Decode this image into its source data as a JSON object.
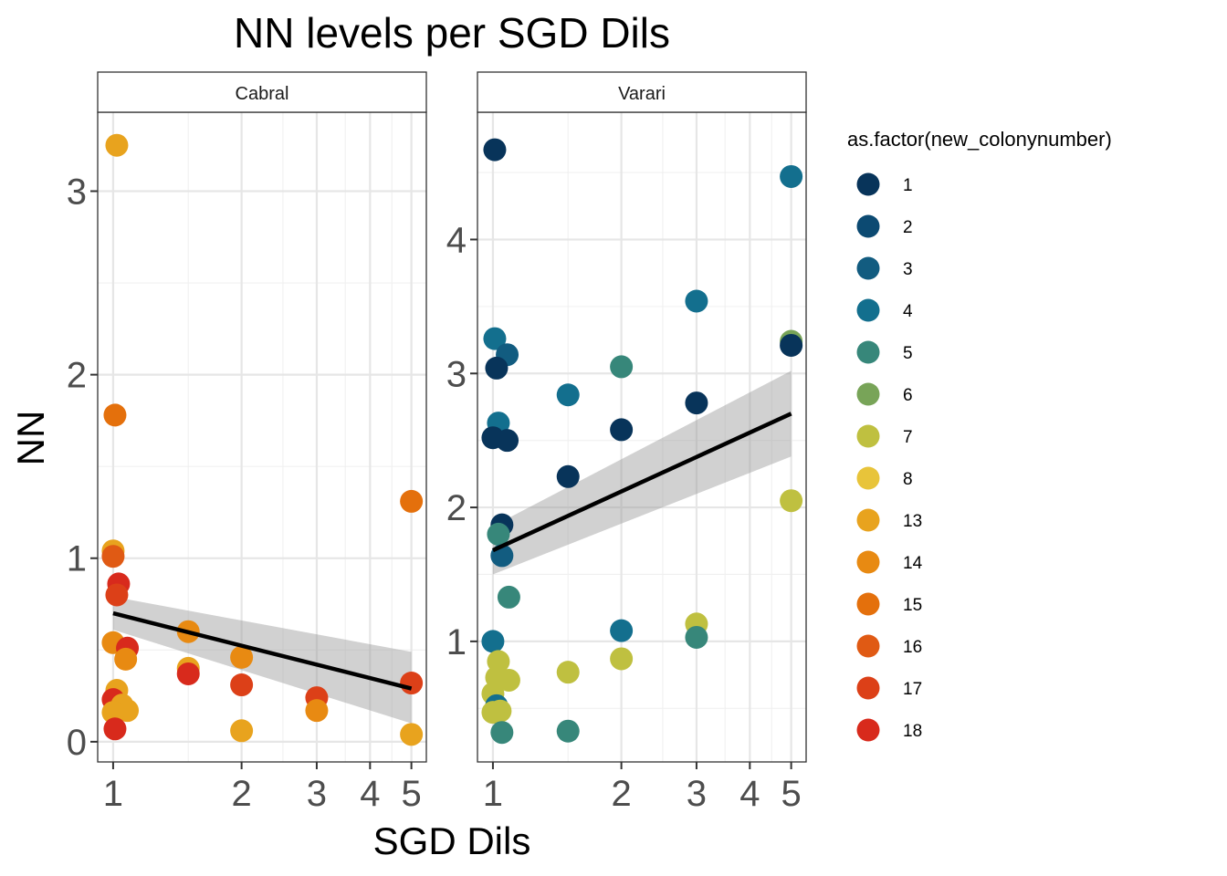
{
  "chart_data": {
    "type": "scatter",
    "title": "NN levels per SGD Dils",
    "xlabel": "SGD Dils",
    "ylabel": "NN",
    "x_scale": "log",
    "x_ticks": [
      1,
      2,
      3,
      4,
      5
    ],
    "legend": {
      "title": "as.factor(new_colonynumber)",
      "position": "right",
      "entries": [
        {
          "label": "1",
          "color": "#08345a"
        },
        {
          "label": "2",
          "color": "#0c4a72"
        },
        {
          "label": "3",
          "color": "#125c80"
        },
        {
          "label": "4",
          "color": "#136f8e"
        },
        {
          "label": "5",
          "color": "#37877a"
        },
        {
          "label": "6",
          "color": "#78a458"
        },
        {
          "label": "7",
          "color": "#bfc040"
        },
        {
          "label": "8",
          "color": "#e8c43a"
        },
        {
          "label": "13",
          "color": "#e8a31e"
        },
        {
          "label": "14",
          "color": "#e88a12"
        },
        {
          "label": "15",
          "color": "#e4700c"
        },
        {
          "label": "16",
          "color": "#e05a14"
        },
        {
          "label": "17",
          "color": "#dc4018"
        },
        {
          "label": "18",
          "color": "#d82a1c"
        }
      ]
    },
    "panels": [
      {
        "strip": "Cabral",
        "ylim": [
          -0.11,
          3.43
        ],
        "y_ticks": [
          0,
          1,
          2,
          3
        ],
        "trend": {
          "x": [
            1,
            5
          ],
          "y": [
            0.7,
            0.29
          ],
          "band_upper": [
            0.79,
            0.49
          ],
          "band_lower": [
            0.61,
            0.1
          ]
        },
        "points": [
          {
            "x": 1.02,
            "y": 3.25,
            "group": "13"
          },
          {
            "x": 1.01,
            "y": 1.78,
            "group": "15"
          },
          {
            "x": 1.0,
            "y": 1.04,
            "group": "13"
          },
          {
            "x": 1.0,
            "y": 1.01,
            "group": "16"
          },
          {
            "x": 1.03,
            "y": 0.86,
            "group": "18"
          },
          {
            "x": 1.02,
            "y": 0.8,
            "group": "17"
          },
          {
            "x": 1.0,
            "y": 0.54,
            "group": "14"
          },
          {
            "x": 1.08,
            "y": 0.51,
            "group": "18"
          },
          {
            "x": 1.07,
            "y": 0.45,
            "group": "14"
          },
          {
            "x": 1.02,
            "y": 0.28,
            "group": "13"
          },
          {
            "x": 1.0,
            "y": 0.23,
            "group": "18"
          },
          {
            "x": 1.05,
            "y": 0.2,
            "group": "13"
          },
          {
            "x": 1.08,
            "y": 0.17,
            "group": "13"
          },
          {
            "x": 1.0,
            "y": 0.16,
            "group": "13"
          },
          {
            "x": 1.01,
            "y": 0.07,
            "group": "18"
          },
          {
            "x": 1.5,
            "y": 0.6,
            "group": "14"
          },
          {
            "x": 1.5,
            "y": 0.4,
            "group": "13"
          },
          {
            "x": 1.5,
            "y": 0.37,
            "group": "18"
          },
          {
            "x": 2.0,
            "y": 0.46,
            "group": "14"
          },
          {
            "x": 2.0,
            "y": 0.31,
            "group": "17"
          },
          {
            "x": 2.0,
            "y": 0.06,
            "group": "13"
          },
          {
            "x": 3.0,
            "y": 0.24,
            "group": "17"
          },
          {
            "x": 3.0,
            "y": 0.17,
            "group": "14"
          },
          {
            "x": 5.0,
            "y": 1.31,
            "group": "15"
          },
          {
            "x": 5.0,
            "y": 0.32,
            "group": "17"
          },
          {
            "x": 5.0,
            "y": 0.04,
            "group": "13"
          }
        ]
      },
      {
        "strip": "Varari",
        "ylim": [
          0.1,
          4.95
        ],
        "y_ticks": [
          1,
          2,
          3,
          4
        ],
        "trend": {
          "x": [
            1,
            5
          ],
          "y": [
            1.68,
            2.7
          ],
          "band_upper": [
            1.86,
            3.02
          ],
          "band_lower": [
            1.5,
            2.38
          ]
        },
        "points": [
          {
            "x": 1.01,
            "y": 4.67,
            "group": "1"
          },
          {
            "x": 1.01,
            "y": 3.26,
            "group": "4"
          },
          {
            "x": 1.08,
            "y": 3.14,
            "group": "3"
          },
          {
            "x": 1.02,
            "y": 3.04,
            "group": "1"
          },
          {
            "x": 1.03,
            "y": 2.63,
            "group": "4"
          },
          {
            "x": 1.0,
            "y": 2.52,
            "group": "1"
          },
          {
            "x": 1.08,
            "y": 2.5,
            "group": "1"
          },
          {
            "x": 1.05,
            "y": 1.87,
            "group": "1"
          },
          {
            "x": 1.03,
            "y": 1.8,
            "group": "5"
          },
          {
            "x": 1.05,
            "y": 1.64,
            "group": "3"
          },
          {
            "x": 1.09,
            "y": 1.33,
            "group": "5"
          },
          {
            "x": 1.0,
            "y": 1.0,
            "group": "4"
          },
          {
            "x": 1.03,
            "y": 0.85,
            "group": "7"
          },
          {
            "x": 1.02,
            "y": 0.73,
            "group": "7"
          },
          {
            "x": 1.09,
            "y": 0.71,
            "group": "7"
          },
          {
            "x": 1.0,
            "y": 0.61,
            "group": "7"
          },
          {
            "x": 1.02,
            "y": 0.52,
            "group": "4"
          },
          {
            "x": 1.04,
            "y": 0.48,
            "group": "7"
          },
          {
            "x": 1.0,
            "y": 0.47,
            "group": "7"
          },
          {
            "x": 1.05,
            "y": 0.32,
            "group": "5"
          },
          {
            "x": 1.5,
            "y": 2.84,
            "group": "4"
          },
          {
            "x": 1.5,
            "y": 2.23,
            "group": "1"
          },
          {
            "x": 1.5,
            "y": 0.77,
            "group": "7"
          },
          {
            "x": 1.5,
            "y": 0.33,
            "group": "5"
          },
          {
            "x": 2.0,
            "y": 3.05,
            "group": "5"
          },
          {
            "x": 2.0,
            "y": 2.58,
            "group": "1"
          },
          {
            "x": 2.0,
            "y": 1.08,
            "group": "4"
          },
          {
            "x": 2.0,
            "y": 0.87,
            "group": "7"
          },
          {
            "x": 3.0,
            "y": 3.54,
            "group": "4"
          },
          {
            "x": 3.0,
            "y": 2.78,
            "group": "1"
          },
          {
            "x": 3.0,
            "y": 1.13,
            "group": "7"
          },
          {
            "x": 3.0,
            "y": 1.03,
            "group": "5"
          },
          {
            "x": 5.0,
            "y": 4.47,
            "group": "4"
          },
          {
            "x": 5.0,
            "y": 3.24,
            "group": "6"
          },
          {
            "x": 5.0,
            "y": 3.21,
            "group": "1"
          },
          {
            "x": 5.0,
            "y": 2.05,
            "group": "7"
          }
        ]
      }
    ]
  }
}
